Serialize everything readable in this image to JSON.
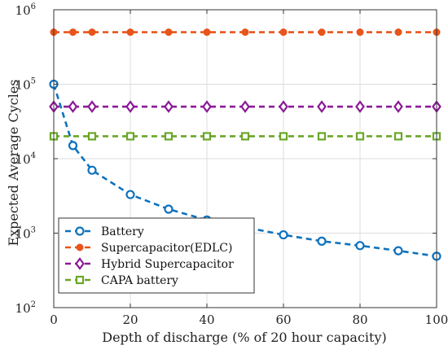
{
  "chart_data": {
    "type": "line",
    "title": "",
    "xlabel": "Depth of discharge (% of 20 hour capacity)",
    "ylabel": "Expected Average Cycles",
    "xlim": [
      0,
      100
    ],
    "ylim": [
      100,
      1000000
    ],
    "yscale": "log",
    "grid": true,
    "legend_position": "bottom-left",
    "x_ticks": [
      0,
      20,
      40,
      60,
      80,
      100
    ],
    "y_ticks": [
      {
        "value": 100,
        "base": "10",
        "exp": "2"
      },
      {
        "value": 1000,
        "base": "10",
        "exp": "3"
      },
      {
        "value": 10000,
        "base": "10",
        "exp": "4"
      },
      {
        "value": 100000,
        "base": "10",
        "exp": "5"
      },
      {
        "value": 1000000,
        "base": "10",
        "exp": "6"
      }
    ],
    "series": [
      {
        "name": "Battery",
        "color": "#0e72bd",
        "marker": "circle",
        "x": [
          0,
          5,
          10,
          20,
          30,
          40,
          50,
          60,
          70,
          80,
          90,
          100
        ],
        "y": [
          100000,
          15000,
          7000,
          3300,
          2100,
          1500,
          1200,
          950,
          780,
          680,
          580,
          490
        ]
      },
      {
        "name": "Supercapacitor(EDLC)",
        "color": "#e8541a",
        "marker": "dot",
        "x": [
          0,
          5,
          10,
          20,
          30,
          40,
          50,
          60,
          70,
          80,
          90,
          100
        ],
        "y": [
          500000,
          500000,
          500000,
          500000,
          500000,
          500000,
          500000,
          500000,
          500000,
          500000,
          500000,
          500000
        ]
      },
      {
        "name": "Hybrid Supercapacitor",
        "color": "#8b1a96",
        "marker": "diamond",
        "x": [
          0,
          5,
          10,
          20,
          30,
          40,
          50,
          60,
          70,
          80,
          90,
          100
        ],
        "y": [
          50000,
          50000,
          50000,
          50000,
          50000,
          50000,
          50000,
          50000,
          50000,
          50000,
          50000,
          50000
        ]
      },
      {
        "name": "CAPA battery",
        "color": "#6aa628",
        "marker": "square",
        "x": [
          0,
          10,
          20,
          30,
          40,
          50,
          60,
          70,
          80,
          90,
          100
        ],
        "y": [
          20000,
          20000,
          20000,
          20000,
          20000,
          20000,
          20000,
          20000,
          20000,
          20000,
          20000
        ]
      }
    ]
  }
}
